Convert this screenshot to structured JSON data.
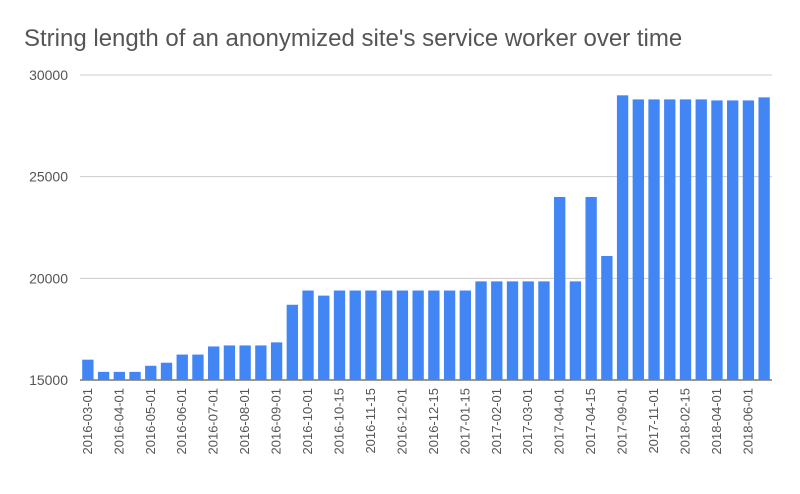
{
  "chart_data": {
    "type": "bar",
    "title": "String length of an anonymized site's service worker over time",
    "categories": [
      "2016-03-01",
      null,
      "2016-04-01",
      null,
      "2016-05-01",
      null,
      "2016-06-01",
      null,
      "2016-07-01",
      null,
      "2016-08-01",
      null,
      "2016-09-01",
      null,
      "2016-10-01",
      null,
      "2016-10-15",
      null,
      "2016-11-15",
      null,
      "2016-12-01",
      null,
      "2016-12-15",
      null,
      "2017-01-15",
      null,
      "2017-02-01",
      null,
      "2017-03-01",
      null,
      "2017-04-01",
      null,
      "2017-04-15",
      null,
      "2017-09-01",
      null,
      "2017-11-01",
      null,
      "2018-02-15",
      null,
      "2018-04-01",
      null,
      "2018-06-01",
      null
    ],
    "values": [
      16000,
      15400,
      15400,
      15400,
      15700,
      15850,
      16250,
      16250,
      16650,
      16700,
      16700,
      16700,
      16850,
      18700,
      19400,
      19150,
      19400,
      19400,
      19400,
      19400,
      19400,
      19400,
      19400,
      19400,
      19400,
      19850,
      19850,
      19850,
      19850,
      19850,
      24000,
      19850,
      24000,
      21100,
      29000,
      28800,
      28800,
      28800,
      28800,
      28800,
      28750,
      28750,
      28750,
      28900
    ],
    "color": "#4285f4",
    "ylim": [
      15000,
      30000
    ],
    "yticks": [
      15000,
      20000,
      25000,
      30000
    ],
    "grid": true
  }
}
